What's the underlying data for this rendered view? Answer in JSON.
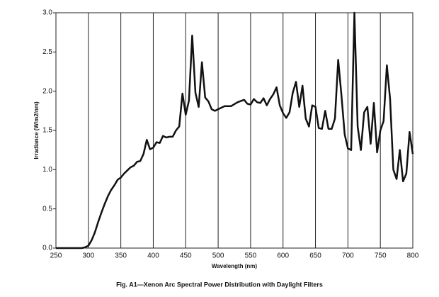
{
  "chart_data": {
    "type": "line",
    "caption": "Fig. A1—Xenon Arc Spectral Power Distribution with Daylight Filters",
    "x_label": "Wavelength (nm)",
    "y_label": "Irradiance (W/m2/nm)",
    "color": "#111111",
    "grid": "vertical",
    "xlim": [
      250,
      800
    ],
    "xticks": [
      250,
      300,
      350,
      400,
      450,
      500,
      550,
      600,
      650,
      700,
      750,
      800
    ],
    "ylim": [
      0,
      3
    ],
    "yticks": [
      {
        "value": 0,
        "label": "0.0"
      },
      0.5,
      {
        "value": 1,
        "label": "1.0"
      },
      1.5,
      {
        "value": 2,
        "label": "2.0"
      },
      2.5,
      {
        "value": 3,
        "label": "3.0"
      }
    ],
    "x": [
      250,
      290,
      295,
      300,
      305,
      310,
      315,
      320,
      325,
      330,
      335,
      340,
      345,
      350,
      355,
      360,
      365,
      370,
      375,
      380,
      385,
      390,
      395,
      400,
      405,
      410,
      415,
      420,
      425,
      430,
      435,
      440,
      445,
      450,
      455,
      460,
      465,
      470,
      475,
      480,
      485,
      490,
      495,
      500,
      510,
      520,
      530,
      540,
      545,
      550,
      555,
      560,
      565,
      570,
      575,
      580,
      585,
      590,
      595,
      600,
      605,
      610,
      615,
      620,
      625,
      630,
      635,
      640,
      645,
      650,
      655,
      660,
      665,
      670,
      675,
      680,
      685,
      690,
      695,
      700,
      705,
      710,
      715,
      720,
      725,
      730,
      735,
      740,
      745,
      750,
      755,
      760,
      765,
      770,
      775,
      780,
      785,
      790,
      795,
      800
    ],
    "values": [
      0,
      0,
      0.01,
      0.03,
      0.1,
      0.2,
      0.33,
      0.45,
      0.56,
      0.66,
      0.74,
      0.8,
      0.87,
      0.9,
      0.95,
      0.99,
      1.03,
      1.05,
      1.1,
      1.11,
      1.2,
      1.38,
      1.26,
      1.28,
      1.35,
      1.34,
      1.43,
      1.41,
      1.42,
      1.42,
      1.5,
      1.55,
      1.97,
      1.7,
      1.88,
      2.71,
      1.98,
      1.8,
      2.37,
      1.92,
      1.87,
      1.77,
      1.75,
      1.77,
      1.81,
      1.81,
      1.86,
      1.89,
      1.84,
      1.83,
      1.9,
      1.86,
      1.85,
      1.91,
      1.82,
      1.9,
      1.96,
      2.05,
      1.82,
      1.72,
      1.66,
      1.73,
      1.98,
      2.12,
      1.8,
      2.07,
      1.65,
      1.55,
      1.82,
      1.8,
      1.53,
      1.52,
      1.75,
      1.52,
      1.52,
      1.65,
      2.4,
      1.95,
      1.45,
      1.27,
      1.25,
      3.0,
      1.55,
      1.25,
      1.73,
      1.8,
      1.33,
      1.85,
      1.22,
      1.5,
      1.62,
      2.33,
      1.9,
      1.0,
      0.88,
      1.25,
      0.85,
      0.95,
      1.48,
      1.2
    ]
  }
}
